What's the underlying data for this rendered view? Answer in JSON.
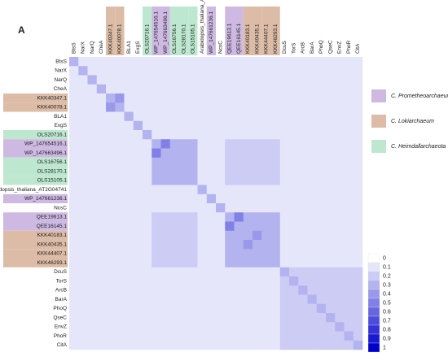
{
  "chart_data": {
    "type": "heatmap",
    "panel_label": "A",
    "labels": [
      "BtsS",
      "NarX",
      "NarQ",
      "CheA",
      "KKK40347.1",
      "KKK40078.1",
      "BLA1",
      "ExgS",
      "OLS20716.1",
      "WP_147654516.1",
      "WP_147663496.1",
      "OLS16756.1",
      "OLS28170.1",
      "OLS15105.1",
      "Arabidopsis_thaliana_AT2G04741",
      "WP_147661236.1",
      "NcsC",
      "QEE19613.1",
      "QEE16145.1",
      "KKK40183.1",
      "KKK40435.1",
      "KKK44407.1",
      "KKK46293.1",
      "DcuS",
      "TorS",
      "ArcB",
      "BarA",
      "PhoQ",
      "QseC",
      "EnvZ",
      "PhoR",
      "CitA"
    ],
    "label_groups": [
      null,
      null,
      null,
      null,
      1,
      1,
      null,
      null,
      2,
      0,
      0,
      2,
      2,
      2,
      null,
      0,
      null,
      0,
      0,
      1,
      1,
      1,
      1,
      null,
      null,
      null,
      null,
      null,
      null,
      null,
      null,
      null
    ],
    "groups": [
      {
        "name": "C. Prometheoarchaeum",
        "color": "#cdb9e2"
      },
      {
        "name": "C. Lokiarchaeum",
        "color": "#dcbca6"
      },
      {
        "name": "C. Heimdallarchaeota",
        "color": "#bde8cf"
      }
    ],
    "matrix": [
      [
        0.3,
        0.1,
        0.1,
        0.1,
        0.1,
        0.1,
        0.1,
        0.1,
        0.1,
        0.1,
        0.1,
        0.1,
        0.1,
        0.1,
        0.1,
        0.1,
        0.1,
        0.1,
        0.1,
        0.1,
        0.1,
        0.1,
        0.1,
        0.1,
        0.1,
        0.1,
        0.1,
        0.1,
        0.1,
        0.1,
        0.1,
        0.1
      ],
      [
        0.1,
        0.3,
        0.1,
        0.1,
        0.1,
        0.1,
        0.1,
        0.1,
        0.1,
        0.1,
        0.1,
        0.1,
        0.1,
        0.1,
        0.1,
        0.1,
        0.1,
        0.1,
        0.1,
        0.1,
        0.1,
        0.1,
        0.1,
        0.1,
        0.1,
        0.1,
        0.1,
        0.1,
        0.1,
        0.1,
        0.1,
        0.1
      ],
      [
        0.1,
        0.1,
        0.3,
        0.1,
        0.1,
        0.1,
        0.1,
        0.1,
        0.1,
        0.1,
        0.1,
        0.1,
        0.1,
        0.1,
        0.1,
        0.1,
        0.1,
        0.1,
        0.1,
        0.1,
        0.1,
        0.1,
        0.1,
        0.1,
        0.1,
        0.1,
        0.1,
        0.1,
        0.1,
        0.1,
        0.1,
        0.1
      ],
      [
        0.1,
        0.1,
        0.1,
        0.3,
        0.1,
        0.1,
        0.1,
        0.1,
        0.1,
        0.1,
        0.1,
        0.1,
        0.1,
        0.1,
        0.1,
        0.1,
        0.1,
        0.1,
        0.1,
        0.1,
        0.1,
        0.1,
        0.1,
        0.1,
        0.1,
        0.1,
        0.1,
        0.1,
        0.1,
        0.1,
        0.1,
        0.1
      ],
      [
        0.1,
        0.1,
        0.1,
        0.1,
        0.3,
        0.4,
        0.1,
        0.1,
        0.1,
        0.1,
        0.1,
        0.1,
        0.1,
        0.1,
        0.1,
        0.1,
        0.1,
        0.1,
        0.1,
        0.1,
        0.1,
        0.1,
        0.1,
        0.1,
        0.1,
        0.1,
        0.1,
        0.1,
        0.1,
        0.1,
        0.1,
        0.1
      ],
      [
        0.1,
        0.1,
        0.1,
        0.1,
        0.4,
        0.3,
        0.1,
        0.1,
        0.1,
        0.1,
        0.1,
        0.1,
        0.1,
        0.1,
        0.1,
        0.1,
        0.1,
        0.1,
        0.1,
        0.1,
        0.1,
        0.1,
        0.1,
        0.1,
        0.1,
        0.1,
        0.1,
        0.1,
        0.1,
        0.1,
        0.1,
        0.1
      ],
      [
        0.1,
        0.1,
        0.1,
        0.1,
        0.1,
        0.1,
        0.3,
        0.1,
        0.1,
        0.1,
        0.1,
        0.1,
        0.1,
        0.1,
        0.1,
        0.1,
        0.1,
        0.1,
        0.1,
        0.1,
        0.1,
        0.1,
        0.1,
        0.1,
        0.1,
        0.1,
        0.1,
        0.1,
        0.1,
        0.1,
        0.1,
        0.1
      ],
      [
        0.1,
        0.1,
        0.1,
        0.1,
        0.1,
        0.1,
        0.1,
        0.3,
        0.1,
        0.1,
        0.1,
        0.1,
        0.1,
        0.1,
        0.1,
        0.1,
        0.1,
        0.1,
        0.1,
        0.1,
        0.1,
        0.1,
        0.1,
        0.1,
        0.1,
        0.1,
        0.1,
        0.1,
        0.1,
        0.1,
        0.1,
        0.1
      ],
      [
        0.1,
        0.1,
        0.1,
        0.1,
        0.1,
        0.1,
        0.1,
        0.1,
        0.3,
        0.1,
        0.1,
        0.1,
        0.1,
        0.1,
        0.1,
        0.1,
        0.1,
        0.1,
        0.1,
        0.1,
        0.1,
        0.1,
        0.1,
        0.1,
        0.1,
        0.1,
        0.1,
        0.1,
        0.1,
        0.1,
        0.1,
        0.1
      ],
      [
        0.1,
        0.1,
        0.1,
        0.1,
        0.1,
        0.1,
        0.1,
        0.1,
        0.1,
        0.3,
        0.5,
        0.3,
        0.3,
        0.3,
        0.1,
        0.1,
        0.1,
        0.2,
        0.2,
        0.2,
        0.2,
        0.2,
        0.2,
        0.1,
        0.1,
        0.1,
        0.1,
        0.1,
        0.1,
        0.1,
        0.1,
        0.1
      ],
      [
        0.1,
        0.1,
        0.1,
        0.1,
        0.1,
        0.1,
        0.1,
        0.1,
        0.1,
        0.5,
        0.3,
        0.3,
        0.3,
        0.3,
        0.1,
        0.1,
        0.1,
        0.2,
        0.2,
        0.2,
        0.2,
        0.2,
        0.2,
        0.1,
        0.1,
        0.1,
        0.1,
        0.1,
        0.1,
        0.1,
        0.1,
        0.1
      ],
      [
        0.1,
        0.1,
        0.1,
        0.1,
        0.1,
        0.1,
        0.1,
        0.1,
        0.1,
        0.3,
        0.3,
        0.3,
        0.3,
        0.3,
        0.1,
        0.1,
        0.1,
        0.2,
        0.2,
        0.2,
        0.2,
        0.2,
        0.2,
        0.1,
        0.1,
        0.1,
        0.1,
        0.1,
        0.1,
        0.1,
        0.1,
        0.1
      ],
      [
        0.1,
        0.1,
        0.1,
        0.1,
        0.1,
        0.1,
        0.1,
        0.1,
        0.1,
        0.3,
        0.3,
        0.3,
        0.3,
        0.3,
        0.1,
        0.1,
        0.1,
        0.2,
        0.2,
        0.2,
        0.2,
        0.2,
        0.2,
        0.1,
        0.1,
        0.1,
        0.1,
        0.1,
        0.1,
        0.1,
        0.1,
        0.1
      ],
      [
        0.1,
        0.1,
        0.1,
        0.1,
        0.1,
        0.1,
        0.1,
        0.1,
        0.1,
        0.3,
        0.3,
        0.3,
        0.3,
        0.3,
        0.1,
        0.1,
        0.1,
        0.2,
        0.2,
        0.2,
        0.2,
        0.2,
        0.2,
        0.1,
        0.1,
        0.1,
        0.1,
        0.1,
        0.1,
        0.1,
        0.1,
        0.1
      ],
      [
        0.1,
        0.1,
        0.1,
        0.1,
        0.1,
        0.1,
        0.1,
        0.1,
        0.1,
        0.1,
        0.1,
        0.1,
        0.1,
        0.1,
        0.3,
        0.1,
        0.1,
        0.1,
        0.1,
        0.1,
        0.1,
        0.1,
        0.1,
        0.1,
        0.1,
        0.1,
        0.1,
        0.1,
        0.1,
        0.1,
        0.1,
        0.1
      ],
      [
        0.1,
        0.1,
        0.1,
        0.1,
        0.1,
        0.1,
        0.1,
        0.1,
        0.1,
        0.1,
        0.1,
        0.1,
        0.1,
        0.1,
        0.1,
        0.3,
        0.1,
        0.1,
        0.1,
        0.1,
        0.1,
        0.1,
        0.1,
        0.1,
        0.1,
        0.1,
        0.1,
        0.1,
        0.1,
        0.1,
        0.1,
        0.1
      ],
      [
        0.1,
        0.1,
        0.1,
        0.1,
        0.1,
        0.1,
        0.1,
        0.1,
        0.1,
        0.1,
        0.1,
        0.1,
        0.1,
        0.1,
        0.1,
        0.1,
        0.3,
        0.1,
        0.1,
        0.1,
        0.1,
        0.1,
        0.1,
        0.1,
        0.1,
        0.1,
        0.1,
        0.1,
        0.1,
        0.1,
        0.1,
        0.1
      ],
      [
        0.1,
        0.1,
        0.1,
        0.1,
        0.1,
        0.1,
        0.1,
        0.1,
        0.1,
        0.2,
        0.2,
        0.2,
        0.2,
        0.2,
        0.1,
        0.1,
        0.1,
        0.3,
        0.5,
        0.3,
        0.3,
        0.3,
        0.3,
        0.1,
        0.1,
        0.1,
        0.1,
        0.1,
        0.1,
        0.1,
        0.1,
        0.1
      ],
      [
        0.1,
        0.1,
        0.1,
        0.1,
        0.1,
        0.1,
        0.1,
        0.1,
        0.1,
        0.2,
        0.2,
        0.2,
        0.2,
        0.2,
        0.1,
        0.1,
        0.1,
        0.5,
        0.3,
        0.3,
        0.3,
        0.3,
        0.3,
        0.1,
        0.1,
        0.1,
        0.1,
        0.1,
        0.1,
        0.1,
        0.1,
        0.1
      ],
      [
        0.1,
        0.1,
        0.1,
        0.1,
        0.1,
        0.1,
        0.1,
        0.1,
        0.1,
        0.2,
        0.2,
        0.2,
        0.2,
        0.2,
        0.1,
        0.1,
        0.1,
        0.3,
        0.3,
        0.3,
        0.4,
        0.3,
        0.3,
        0.1,
        0.1,
        0.1,
        0.1,
        0.1,
        0.1,
        0.1,
        0.1,
        0.1
      ],
      [
        0.1,
        0.1,
        0.1,
        0.1,
        0.1,
        0.1,
        0.1,
        0.1,
        0.1,
        0.2,
        0.2,
        0.2,
        0.2,
        0.2,
        0.1,
        0.1,
        0.1,
        0.3,
        0.3,
        0.4,
        0.3,
        0.3,
        0.3,
        0.1,
        0.1,
        0.1,
        0.1,
        0.1,
        0.1,
        0.1,
        0.1,
        0.1
      ],
      [
        0.1,
        0.1,
        0.1,
        0.1,
        0.1,
        0.1,
        0.1,
        0.1,
        0.1,
        0.2,
        0.2,
        0.2,
        0.2,
        0.2,
        0.1,
        0.1,
        0.1,
        0.3,
        0.3,
        0.3,
        0.3,
        0.3,
        0.3,
        0.1,
        0.1,
        0.1,
        0.1,
        0.1,
        0.1,
        0.1,
        0.1,
        0.1
      ],
      [
        0.1,
        0.1,
        0.1,
        0.1,
        0.1,
        0.1,
        0.1,
        0.1,
        0.1,
        0.2,
        0.2,
        0.2,
        0.2,
        0.2,
        0.1,
        0.1,
        0.1,
        0.3,
        0.3,
        0.3,
        0.3,
        0.3,
        0.3,
        0.1,
        0.1,
        0.1,
        0.1,
        0.1,
        0.1,
        0.1,
        0.1,
        0.1
      ],
      [
        0.1,
        0.1,
        0.1,
        0.1,
        0.1,
        0.1,
        0.1,
        0.1,
        0.1,
        0.1,
        0.1,
        0.1,
        0.1,
        0.1,
        0.1,
        0.1,
        0.1,
        0.1,
        0.1,
        0.1,
        0.1,
        0.1,
        0.1,
        0.3,
        0.2,
        0.2,
        0.2,
        0.2,
        0.2,
        0.2,
        0.2,
        0.2
      ],
      [
        0.1,
        0.1,
        0.1,
        0.1,
        0.1,
        0.1,
        0.1,
        0.1,
        0.1,
        0.1,
        0.1,
        0.1,
        0.1,
        0.1,
        0.1,
        0.1,
        0.1,
        0.1,
        0.1,
        0.1,
        0.1,
        0.1,
        0.1,
        0.2,
        0.3,
        0.2,
        0.2,
        0.2,
        0.2,
        0.2,
        0.2,
        0.2
      ],
      [
        0.1,
        0.1,
        0.1,
        0.1,
        0.1,
        0.1,
        0.1,
        0.1,
        0.1,
        0.1,
        0.1,
        0.1,
        0.1,
        0.1,
        0.1,
        0.1,
        0.1,
        0.1,
        0.1,
        0.1,
        0.1,
        0.1,
        0.1,
        0.2,
        0.2,
        0.3,
        0.2,
        0.2,
        0.2,
        0.2,
        0.2,
        0.2
      ],
      [
        0.1,
        0.1,
        0.1,
        0.1,
        0.1,
        0.1,
        0.1,
        0.1,
        0.1,
        0.1,
        0.1,
        0.1,
        0.1,
        0.1,
        0.1,
        0.1,
        0.1,
        0.1,
        0.1,
        0.1,
        0.1,
        0.1,
        0.1,
        0.2,
        0.2,
        0.2,
        0.3,
        0.2,
        0.2,
        0.2,
        0.2,
        0.2
      ],
      [
        0.1,
        0.1,
        0.1,
        0.1,
        0.1,
        0.1,
        0.1,
        0.1,
        0.1,
        0.1,
        0.1,
        0.1,
        0.1,
        0.1,
        0.1,
        0.1,
        0.1,
        0.1,
        0.1,
        0.1,
        0.1,
        0.1,
        0.1,
        0.2,
        0.2,
        0.2,
        0.2,
        0.3,
        0.2,
        0.2,
        0.2,
        0.2
      ],
      [
        0.1,
        0.1,
        0.1,
        0.1,
        0.1,
        0.1,
        0.1,
        0.1,
        0.1,
        0.1,
        0.1,
        0.1,
        0.1,
        0.1,
        0.1,
        0.1,
        0.1,
        0.1,
        0.1,
        0.1,
        0.1,
        0.1,
        0.1,
        0.2,
        0.2,
        0.2,
        0.2,
        0.2,
        0.3,
        0.2,
        0.2,
        0.2
      ],
      [
        0.1,
        0.1,
        0.1,
        0.1,
        0.1,
        0.1,
        0.1,
        0.1,
        0.1,
        0.1,
        0.1,
        0.1,
        0.1,
        0.1,
        0.1,
        0.1,
        0.1,
        0.1,
        0.1,
        0.1,
        0.1,
        0.1,
        0.1,
        0.2,
        0.2,
        0.2,
        0.2,
        0.2,
        0.2,
        0.3,
        0.2,
        0.2
      ],
      [
        0.1,
        0.1,
        0.1,
        0.1,
        0.1,
        0.1,
        0.1,
        0.1,
        0.1,
        0.1,
        0.1,
        0.1,
        0.1,
        0.1,
        0.1,
        0.1,
        0.1,
        0.1,
        0.1,
        0.1,
        0.1,
        0.1,
        0.1,
        0.2,
        0.2,
        0.2,
        0.2,
        0.2,
        0.2,
        0.2,
        0.3,
        0.2
      ],
      [
        0.1,
        0.1,
        0.1,
        0.1,
        0.1,
        0.1,
        0.1,
        0.1,
        0.1,
        0.1,
        0.1,
        0.1,
        0.1,
        0.1,
        0.1,
        0.1,
        0.1,
        0.1,
        0.1,
        0.1,
        0.1,
        0.1,
        0.1,
        0.2,
        0.2,
        0.2,
        0.2,
        0.2,
        0.2,
        0.2,
        0.2,
        0.3
      ]
    ],
    "colorbar_ticks": [
      0,
      0.1,
      0.2,
      0.3,
      0.4,
      0.5,
      0.6,
      0.7,
      0.8,
      0.9,
      1
    ],
    "color_low": "#ffffff",
    "color_high": "#0000cd"
  }
}
